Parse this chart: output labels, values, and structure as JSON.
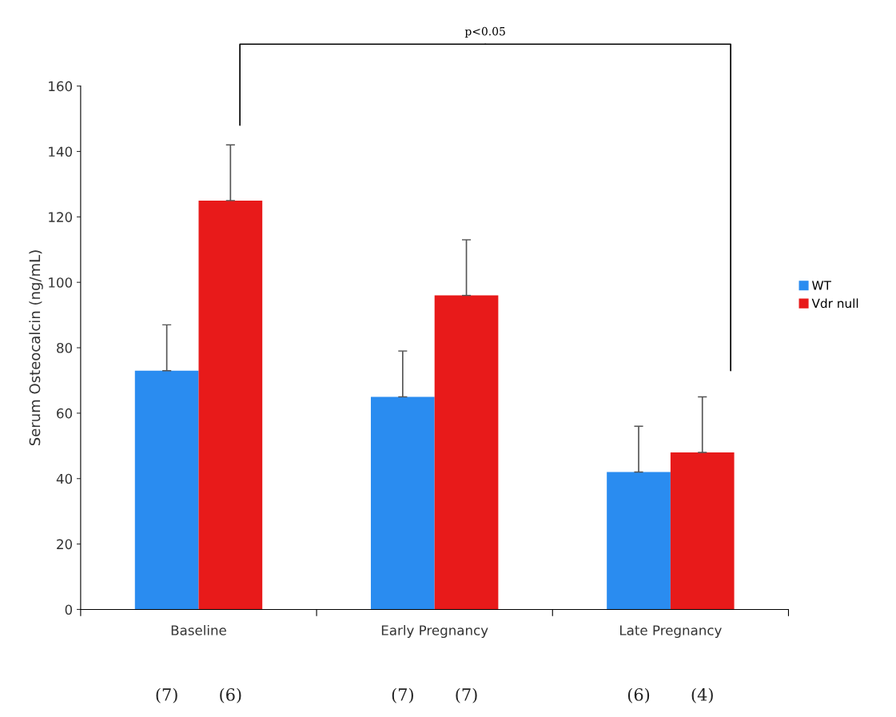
{
  "chart_data": {
    "type": "bar",
    "ylabel": "Serum Osteocalcin (ng/mL)",
    "categories": [
      "Baseline",
      "Early Pregnancy",
      "Late Pregnancy"
    ],
    "series": [
      {
        "name": "WT",
        "color": "#2a8cf0",
        "values": [
          73,
          65,
          42
        ],
        "errors": [
          [
            73,
            87
          ],
          [
            65,
            79
          ],
          [
            42,
            56
          ]
        ]
      },
      {
        "name": "Vdr null",
        "color": "#e81a1a",
        "values": [
          125,
          96,
          48
        ],
        "errors": [
          [
            125,
            142
          ],
          [
            96,
            113
          ],
          [
            48,
            65
          ]
        ]
      }
    ],
    "ylim": [
      0,
      160
    ],
    "yticks": [
      0,
      20,
      40,
      60,
      80,
      100,
      120,
      140,
      160
    ],
    "grid": false,
    "legend": "right",
    "annotations": [
      "p<0.05",
      "(7)",
      "(6)",
      "(7)",
      "(7)",
      "(6)",
      "(4)"
    ]
  }
}
